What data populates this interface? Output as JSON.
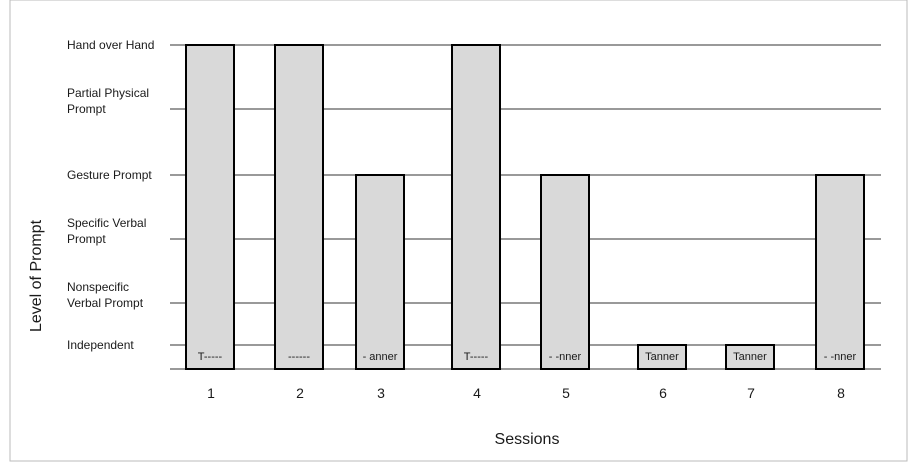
{
  "chart_data": {
    "type": "bar",
    "xlabel": "Sessions",
    "ylabel": "Level of Prompt",
    "levels": [
      {
        "label": "Independent",
        "lines": [
          "Independent"
        ]
      },
      {
        "label": "Nonspecific Verbal Prompt",
        "lines": [
          "Nonspecific",
          "Verbal Prompt"
        ]
      },
      {
        "label": "Specific Verbal Prompt",
        "lines": [
          "Specific Verbal",
          "Prompt"
        ]
      },
      {
        "label": "Gesture Prompt",
        "lines": [
          "Gesture Prompt"
        ]
      },
      {
        "label": "Partial Physical Prompt",
        "lines": [
          "Partial Physical",
          "Prompt"
        ]
      },
      {
        "label": "Hand over Hand",
        "lines": [
          "Hand over Hand"
        ]
      }
    ],
    "categories": [
      "1",
      "2",
      "3",
      "4",
      "5",
      "6",
      "7",
      "8"
    ],
    "values": [
      5,
      5,
      3,
      5,
      3,
      0,
      0,
      3
    ],
    "bar_labels": [
      "T-----",
      "------",
      "- anner",
      "T-----",
      "- -nner",
      "Tanner",
      "Tanner",
      "- -nner"
    ],
    "grid": true,
    "colors": {
      "bar_fill": "#d9d9d9",
      "bar_stroke": "#000000",
      "grid": "#333333",
      "frame": "#bbbbbb"
    }
  }
}
